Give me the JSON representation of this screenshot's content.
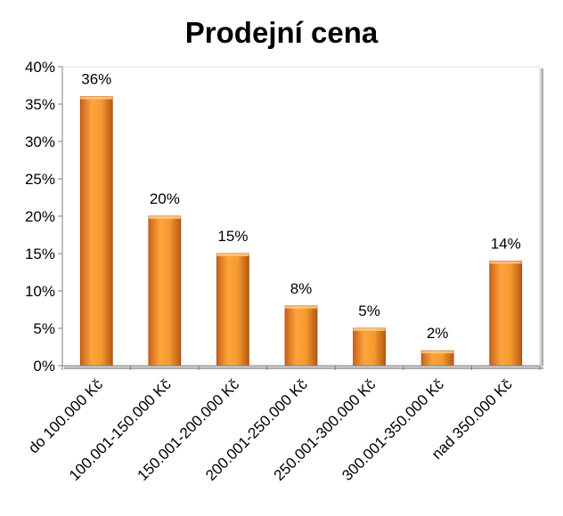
{
  "chart_data": {
    "type": "bar",
    "title": "Prodejní cena",
    "categories": [
      "do 100.000 Kč",
      "100.001-150.000 Kč",
      "150.001-200.000 Kč",
      "200.001-250.000 Kč",
      "250.001-300.000 Kč",
      "300.001-350.000 Kč",
      "nad 350.000 Kč"
    ],
    "values": [
      36,
      20,
      15,
      8,
      5,
      2,
      14
    ],
    "value_labels": [
      "36%",
      "20%",
      "15%",
      "8%",
      "5%",
      "2%",
      "14%"
    ],
    "y_ticks": [
      "0%",
      "5%",
      "10%",
      "15%",
      "20%",
      "25%",
      "30%",
      "35%",
      "40%"
    ],
    "ylim": [
      0,
      40
    ],
    "xlabel": "",
    "ylabel": "",
    "grid": false,
    "legend": "none",
    "bar_color": "#f59a2e",
    "bar_color_dark": "#c8621a",
    "plot_frame_color": "#d0d0d0"
  }
}
